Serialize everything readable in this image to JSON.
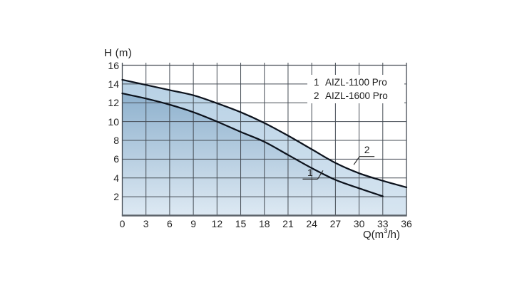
{
  "chart_data": {
    "type": "area",
    "title": "",
    "ylabel": "H (m)",
    "xlabel": {
      "prefix": "Q(m",
      "sup": "3",
      "suffix": "/h)"
    },
    "xlim": [
      0,
      36
    ],
    "ylim": [
      0,
      16
    ],
    "x_tick_step": 3,
    "y_tick_step": 2,
    "x_ticks": [
      0,
      3,
      6,
      9,
      12,
      15,
      18,
      21,
      24,
      27,
      30,
      33,
      36
    ],
    "y_tick_labels": [
      2,
      4,
      6,
      8,
      10,
      12,
      14,
      16
    ],
    "grid": true,
    "grid_color": "#454c54",
    "axis_color": "#5d646b",
    "legend_position": "top-right",
    "series": [
      {
        "index": "2",
        "name": "AIZL-1600 Pro",
        "q": [
          0,
          3,
          6,
          9,
          12,
          15,
          18,
          21,
          24,
          27,
          30,
          33,
          36
        ],
        "h": [
          14.45,
          13.9,
          13.35,
          12.8,
          11.95,
          11.0,
          9.85,
          8.5,
          7.05,
          5.6,
          4.5,
          3.7,
          3.0
        ],
        "line_color": "#0c121c",
        "fill_top": "#b6d0e4",
        "fill_bottom": "#d7e5f1"
      },
      {
        "index": "1",
        "name": "AIZL-1100 Pro",
        "q": [
          0,
          3,
          6,
          9,
          12,
          15,
          18,
          21,
          24,
          27,
          30,
          33
        ],
        "h": [
          13.0,
          12.45,
          11.8,
          11.0,
          10.0,
          8.9,
          7.85,
          6.45,
          5.05,
          3.8,
          2.9,
          2.05
        ],
        "line_color": "#0c121c",
        "fill_top": "#83a9c8",
        "fill_bottom": "#dde9f3"
      }
    ],
    "legend_entries": [
      {
        "num": "1",
        "label": "AIZL-1100 Pro"
      },
      {
        "num": "2",
        "label": "AIZL-1600 Pro"
      }
    ],
    "annotations": [
      {
        "text": "1",
        "q": 23.8,
        "h": 4.6,
        "dir": "up-right"
      },
      {
        "text": "2",
        "q": 31.0,
        "h": 7.0,
        "dir": "down-left"
      }
    ]
  }
}
